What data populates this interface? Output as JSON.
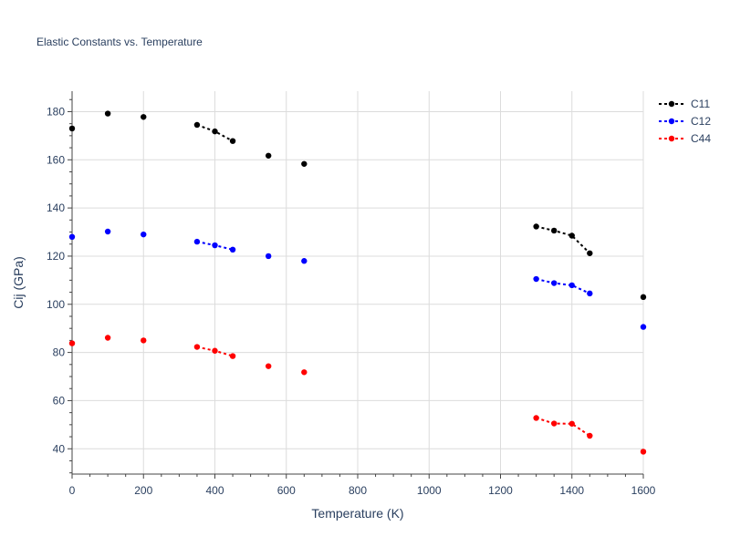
{
  "chart_data": {
    "type": "line",
    "title": "Elastic Constants vs. Temperature",
    "xlabel": "Temperature (K)",
    "ylabel": "Cij (GPa)",
    "xlim": [
      0,
      1600
    ],
    "ylim": [
      29.5,
      188.5
    ],
    "xticks": [
      0,
      200,
      400,
      600,
      800,
      1000,
      1200,
      1400,
      1600
    ],
    "yticks": [
      40,
      60,
      80,
      100,
      120,
      140,
      160,
      180
    ],
    "legend_position": "top-right",
    "series": [
      {
        "name": "C11",
        "color": "#000000",
        "points": [
          [
            0,
            173
          ],
          [
            100,
            179.2
          ],
          [
            200,
            177.8
          ],
          [
            350,
            174.5
          ],
          [
            400,
            171.8
          ],
          [
            450,
            167.8
          ],
          [
            550,
            161.7
          ],
          [
            650,
            158.3
          ],
          [
            1300,
            132.3
          ],
          [
            1350,
            130.6
          ],
          [
            1400,
            128.5
          ],
          [
            1450,
            121.2
          ],
          [
            1600,
            103
          ]
        ],
        "segments": [
          [
            350,
            450
          ],
          [
            1300,
            1450
          ]
        ]
      },
      {
        "name": "C12",
        "color": "#0000ff",
        "points": [
          [
            0,
            128
          ],
          [
            100,
            130.2
          ],
          [
            200,
            129
          ],
          [
            350,
            126
          ],
          [
            400,
            124.5
          ],
          [
            450,
            122.7
          ],
          [
            550,
            120
          ],
          [
            650,
            118
          ],
          [
            1300,
            110.5
          ],
          [
            1350,
            108.8
          ],
          [
            1400,
            107.9
          ],
          [
            1450,
            104.5
          ],
          [
            1600,
            90.6
          ]
        ],
        "segments": [
          [
            350,
            450
          ],
          [
            1300,
            1450
          ]
        ]
      },
      {
        "name": "C44",
        "color": "#ff0000",
        "points": [
          [
            0,
            83.8
          ],
          [
            100,
            86.1
          ],
          [
            200,
            85
          ],
          [
            350,
            82.3
          ],
          [
            400,
            80.7
          ],
          [
            450,
            78.5
          ],
          [
            550,
            74.3
          ],
          [
            650,
            71.8
          ],
          [
            1300,
            52.8
          ],
          [
            1350,
            50.5
          ],
          [
            1400,
            50.4
          ],
          [
            1450,
            45.4
          ],
          [
            1600,
            38.8
          ]
        ],
        "segments": [
          [
            350,
            450
          ],
          [
            1300,
            1450
          ]
        ]
      }
    ]
  }
}
